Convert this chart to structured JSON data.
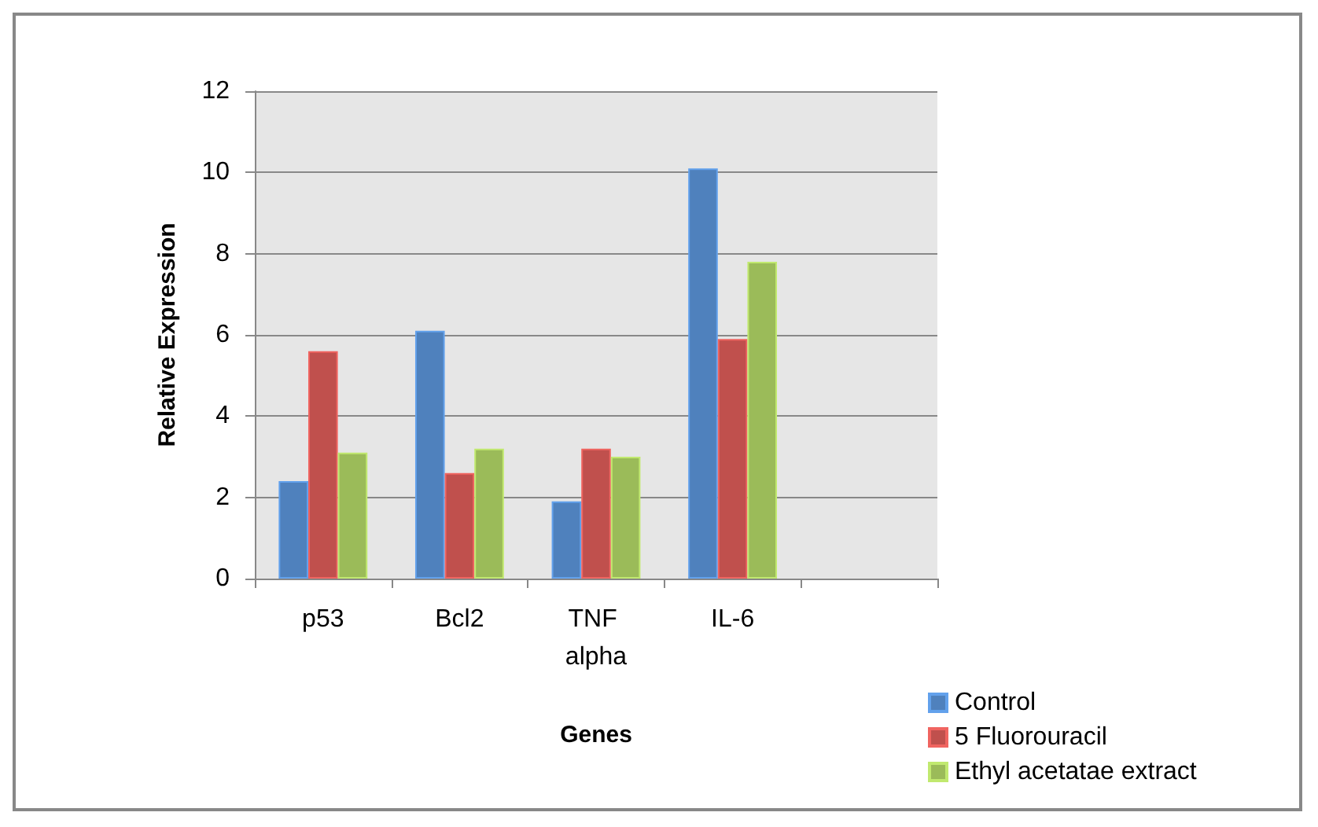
{
  "chart_data": {
    "type": "bar",
    "xlabel": "Genes",
    "ylabel": "Relative Expression",
    "categories": [
      "p53",
      "Bcl2",
      "TNF alpha",
      "IL-6",
      null
    ],
    "series": [
      {
        "name": "Control",
        "color": "#4f81bd",
        "values": [
          2.4,
          6.1,
          1.9,
          10.1,
          null
        ]
      },
      {
        "name": "5 Fluorouracil",
        "color": "#c0504d",
        "values": [
          5.6,
          2.6,
          3.2,
          5.9,
          null
        ]
      },
      {
        "name": "Ethyl acetatae extract",
        "color": "#9bbb59",
        "values": [
          3.1,
          3.2,
          3.0,
          7.8,
          null
        ]
      }
    ],
    "ylim": [
      0,
      12
    ],
    "yticks": [
      0,
      2,
      4,
      6,
      8,
      10,
      12
    ],
    "grid": "y",
    "legend": "bottom right"
  }
}
